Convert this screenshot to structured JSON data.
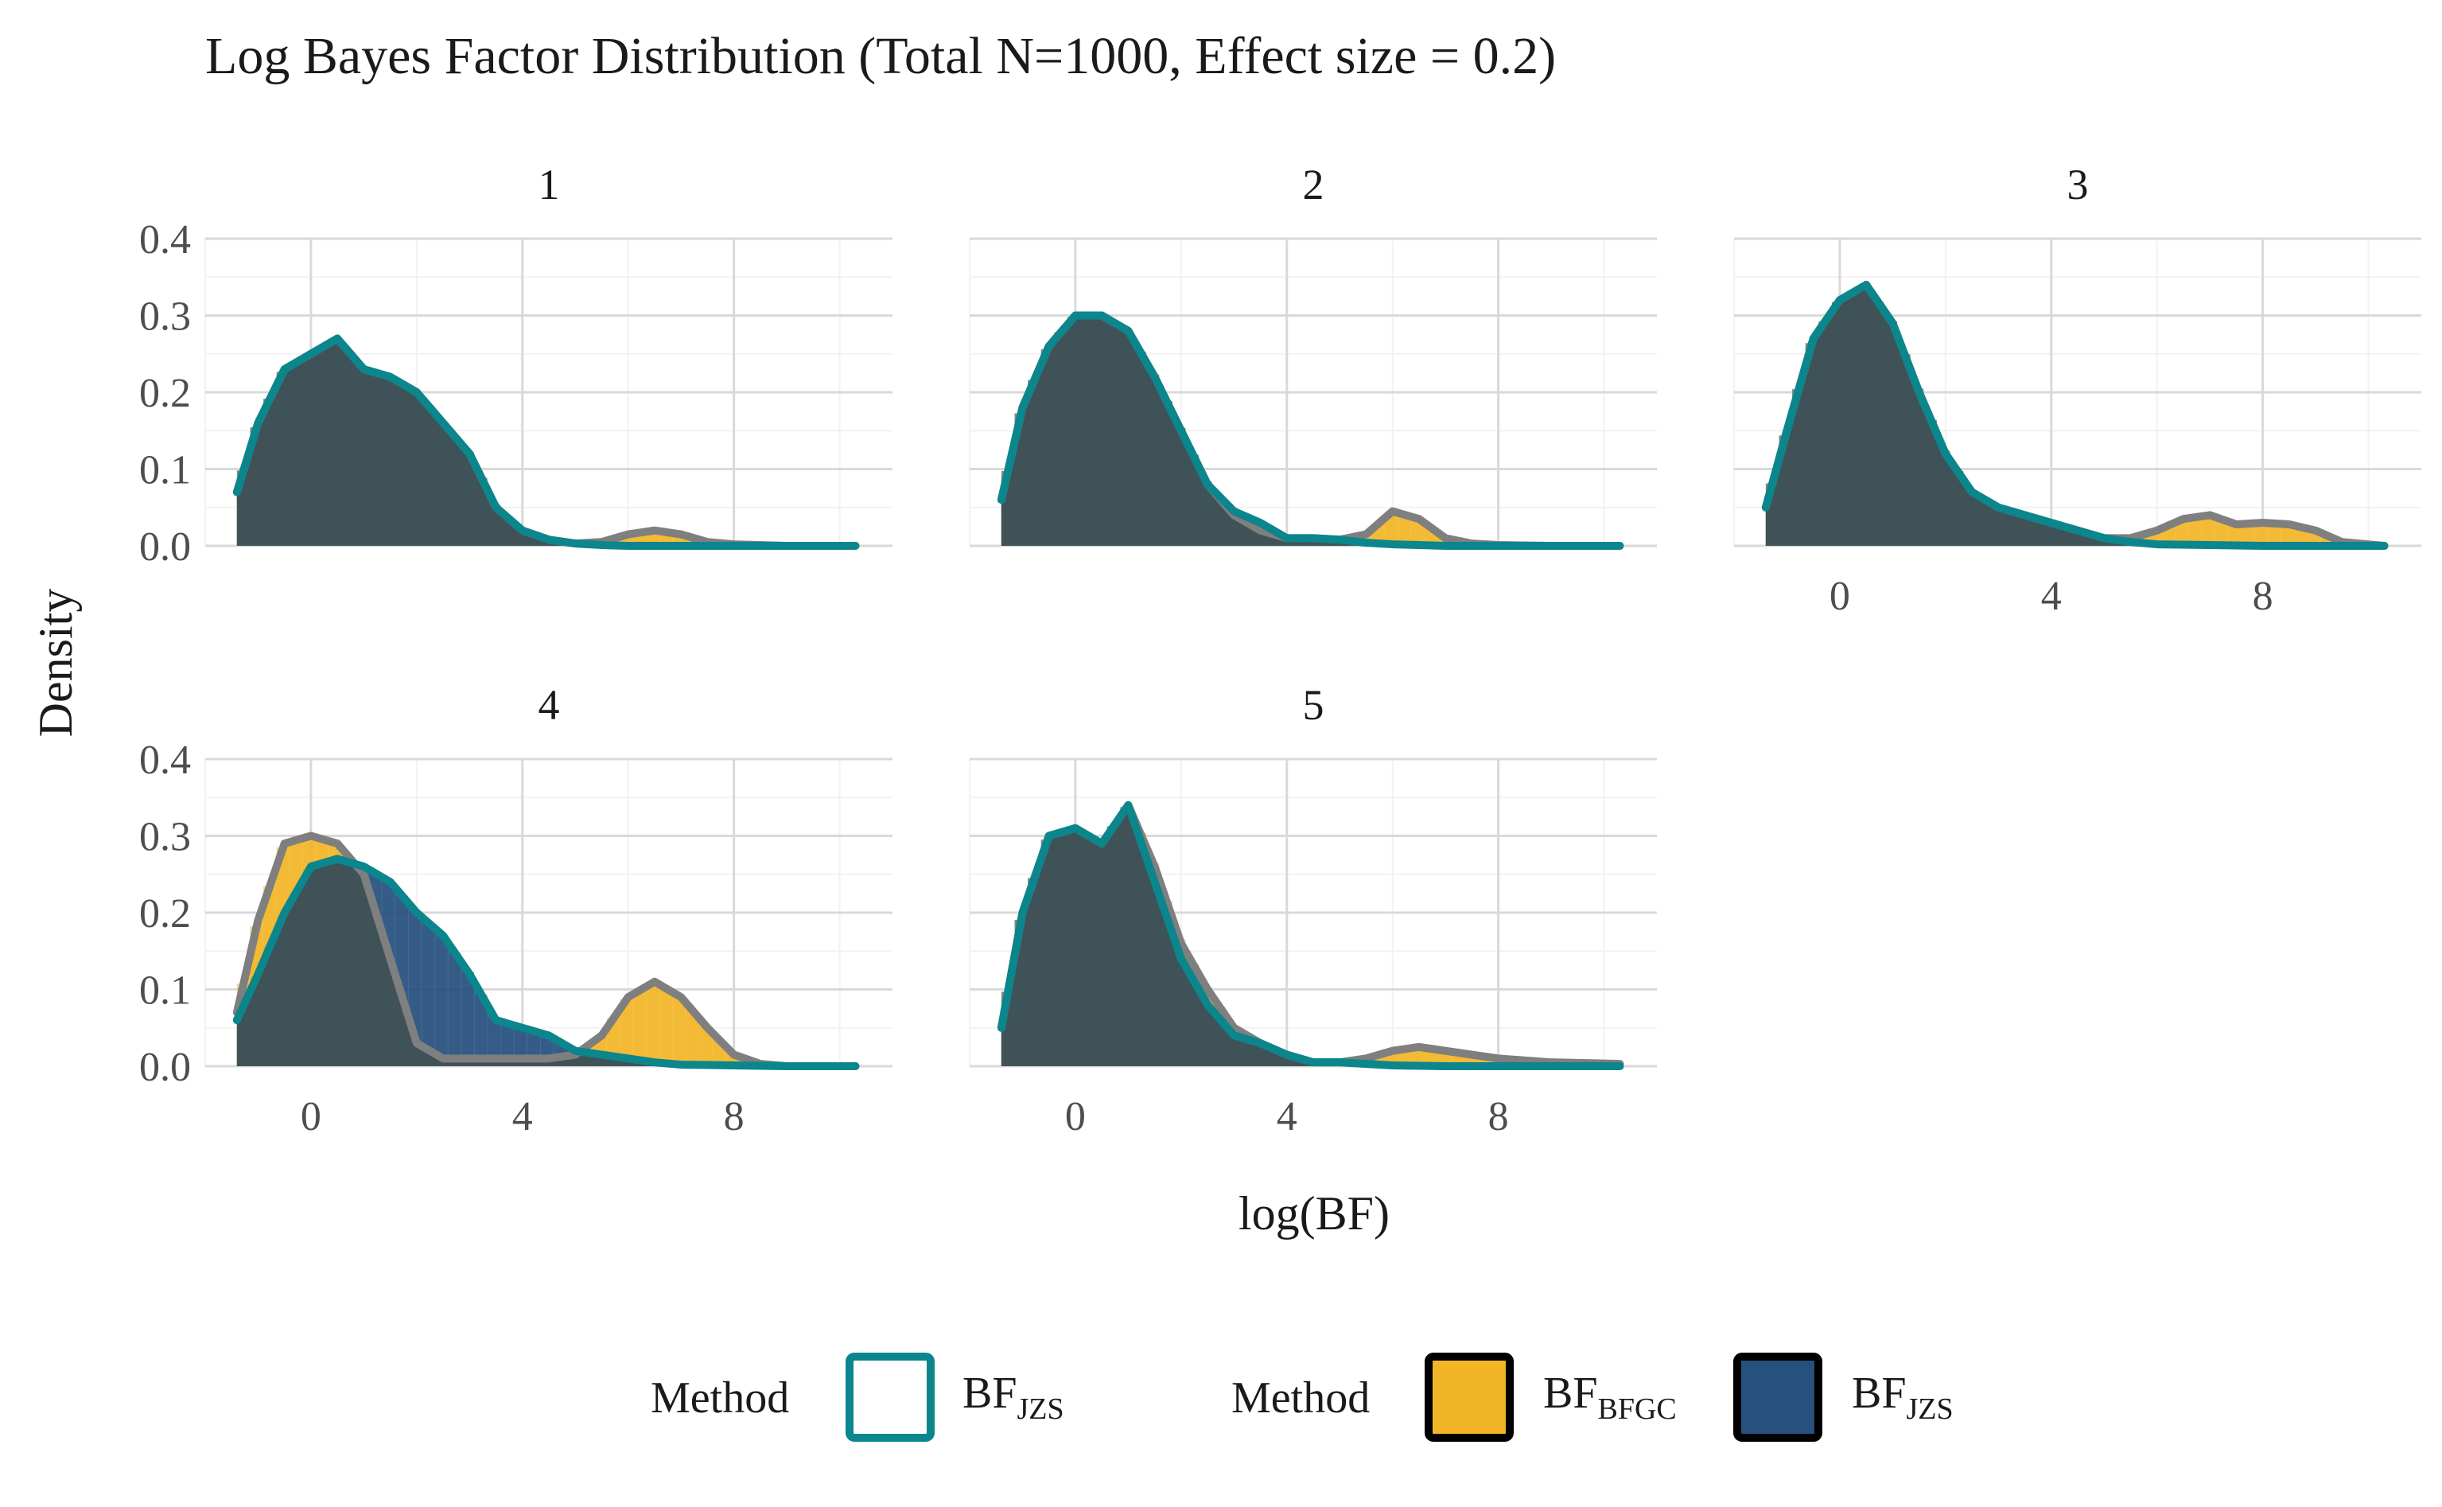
{
  "title": "Log Bayes Factor Distribution (Total N=1000, Effect size = 0.2)",
  "colors": {
    "bfgc": "#F2B527",
    "jzs": "#26507E",
    "jzs_line": "#0A868C",
    "bfgc_line": "#7F7F7F",
    "overlap": "#3F5154",
    "grid_major": "#D9D9D9",
    "grid_minor": "#F2F2F2",
    "text_dark": "#1A1A1A",
    "text_axis": "#4D4D4D"
  },
  "legend": {
    "group1": {
      "title": "Method",
      "items": [
        {
          "base": "BF",
          "sub": "JZS",
          "style": "line",
          "color_key": "jzs_line"
        }
      ]
    },
    "group2": {
      "title": "Method",
      "items": [
        {
          "base": "BF",
          "sub": "BFGC",
          "style": "fill",
          "color_key": "bfgc"
        },
        {
          "base": "BF",
          "sub": "JZS",
          "style": "fill",
          "color_key": "jzs"
        }
      ]
    }
  },
  "chart_data": {
    "type": "area",
    "title": "Log Bayes Factor Distribution (Total N=1000, Effect size = 0.2)",
    "xlabel": "log(BF)",
    "ylabel": "Density",
    "xlim": [
      -2,
      11
    ],
    "ylim": [
      0,
      0.4
    ],
    "x_ticks": [
      0,
      4,
      8
    ],
    "x_tick_labels": [
      "0",
      "4",
      "8"
    ],
    "y_ticks": [
      0,
      0.1,
      0.2,
      0.3,
      0.4
    ],
    "y_tick_labels": [
      "0.0",
      "0.1",
      "0.2",
      "0.3",
      "0.4"
    ],
    "grid": true,
    "legend_position": "bottom",
    "x_axis_shown_on_panels": [
      "3",
      "4",
      "5"
    ],
    "y_axis_shown_on_panels": [
      "1",
      "4"
    ],
    "histogram_bin_width": 0.25,
    "panels": [
      {
        "label": "1",
        "series": [
          {
            "name": "BFBFGC",
            "kind": "density",
            "x": [
              -1.4,
              -1,
              -0.5,
              0,
              0.5,
              1,
              1.5,
              2,
              2.5,
              3,
              3.5,
              4,
              4.5,
              5,
              5.5,
              6,
              6.5,
              7,
              7.5,
              8,
              9,
              10.3
            ],
            "y": [
              0.07,
              0.16,
              0.23,
              0.25,
              0.27,
              0.23,
              0.22,
              0.2,
              0.16,
              0.12,
              0.05,
              0.02,
              0.008,
              0.003,
              0.005,
              0.015,
              0.02,
              0.015,
              0.005,
              0.002,
              0,
              0
            ]
          },
          {
            "name": "BFJZS",
            "kind": "density",
            "x": [
              -1.4,
              -1,
              -0.5,
              0,
              0.5,
              1,
              1.5,
              2,
              2.5,
              3,
              3.5,
              4,
              4.5,
              5,
              5.5,
              6,
              7,
              8,
              9,
              10.3
            ],
            "y": [
              0.07,
              0.16,
              0.23,
              0.25,
              0.27,
              0.23,
              0.22,
              0.2,
              0.16,
              0.12,
              0.05,
              0.02,
              0.008,
              0.003,
              0.001,
              0,
              0,
              0,
              0,
              0
            ]
          }
        ]
      },
      {
        "label": "2",
        "series": [
          {
            "name": "BFBFGC",
            "kind": "density",
            "x": [
              -1.4,
              -1,
              -0.5,
              0,
              0.5,
              1,
              1.5,
              2,
              2.5,
              3,
              3.5,
              4,
              4.5,
              5,
              5.5,
              6,
              6.5,
              7,
              7.5,
              8,
              9,
              10.3
            ],
            "y": [
              0.06,
              0.18,
              0.26,
              0.3,
              0.3,
              0.28,
              0.22,
              0.15,
              0.08,
              0.04,
              0.02,
              0.01,
              0.01,
              0.008,
              0.015,
              0.045,
              0.035,
              0.01,
              0.003,
              0.001,
              0,
              0
            ]
          },
          {
            "name": "BFJZS",
            "kind": "density",
            "x": [
              -1.4,
              -1,
              -0.5,
              0,
              0.5,
              1,
              1.5,
              2,
              2.5,
              3,
              3.5,
              4,
              4.5,
              5,
              5.5,
              6,
              6.5,
              7,
              8,
              9,
              10.3
            ],
            "y": [
              0.06,
              0.18,
              0.26,
              0.3,
              0.3,
              0.28,
              0.22,
              0.15,
              0.08,
              0.045,
              0.03,
              0.01,
              0.01,
              0.008,
              0.004,
              0.002,
              0.001,
              0,
              0,
              0,
              0
            ]
          }
        ]
      },
      {
        "label": "3",
        "series": [
          {
            "name": "BFBFGC",
            "kind": "density",
            "x": [
              -1.4,
              -1,
              -0.5,
              0,
              0.5,
              1,
              1.5,
              2,
              2.5,
              3,
              3.5,
              4,
              4.5,
              5,
              5.5,
              6,
              6.5,
              7,
              7.5,
              8,
              8.5,
              9,
              9.5,
              10.3
            ],
            "y": [
              0.05,
              0.15,
              0.27,
              0.32,
              0.34,
              0.29,
              0.2,
              0.12,
              0.07,
              0.05,
              0.04,
              0.03,
              0.02,
              0.01,
              0.01,
              0.02,
              0.035,
              0.04,
              0.028,
              0.03,
              0.028,
              0.02,
              0.005,
              0
            ]
          },
          {
            "name": "BFJZS",
            "kind": "density",
            "x": [
              -1.4,
              -1,
              -0.5,
              0,
              0.5,
              1,
              1.5,
              2,
              2.5,
              3,
              3.5,
              4,
              4.5,
              5,
              5.5,
              6,
              7,
              8,
              9,
              10.3
            ],
            "y": [
              0.05,
              0.15,
              0.27,
              0.32,
              0.34,
              0.29,
              0.2,
              0.12,
              0.07,
              0.05,
              0.04,
              0.03,
              0.02,
              0.01,
              0.005,
              0.002,
              0.001,
              0,
              0,
              0
            ]
          }
        ]
      },
      {
        "label": "4",
        "series": [
          {
            "name": "BFBFGC",
            "kind": "density",
            "x": [
              -1.4,
              -1,
              -0.5,
              0,
              0.5,
              1,
              1.5,
              2,
              2.5,
              3,
              3.5,
              4,
              4.5,
              5,
              5.5,
              6,
              6.5,
              7,
              7.5,
              8,
              8.5,
              9,
              10.3
            ],
            "y": [
              0.07,
              0.19,
              0.29,
              0.3,
              0.29,
              0.25,
              0.14,
              0.03,
              0.01,
              0.01,
              0.01,
              0.01,
              0.01,
              0.015,
              0.04,
              0.09,
              0.11,
              0.09,
              0.05,
              0.015,
              0.003,
              0,
              0
            ]
          },
          {
            "name": "BFJZS",
            "kind": "density",
            "x": [
              -1.4,
              -1,
              -0.5,
              0,
              0.5,
              1,
              1.5,
              2,
              2.5,
              3,
              3.5,
              4,
              4.5,
              5,
              5.5,
              6,
              6.5,
              7,
              8,
              9,
              10.3
            ],
            "y": [
              0.06,
              0.12,
              0.2,
              0.26,
              0.27,
              0.26,
              0.24,
              0.2,
              0.17,
              0.12,
              0.06,
              0.05,
              0.04,
              0.02,
              0.015,
              0.01,
              0.005,
              0.002,
              0.001,
              0,
              0
            ]
          }
        ]
      },
      {
        "label": "5",
        "series": [
          {
            "name": "BFBFGC",
            "kind": "density",
            "x": [
              -1.4,
              -1,
              -0.5,
              0,
              0.5,
              1,
              1.5,
              2,
              2.5,
              3,
              3.5,
              4,
              4.5,
              5,
              5.5,
              6,
              6.5,
              7,
              7.5,
              8,
              9,
              10.3
            ],
            "y": [
              0.05,
              0.2,
              0.3,
              0.31,
              0.29,
              0.34,
              0.26,
              0.16,
              0.1,
              0.05,
              0.03,
              0.015,
              0.005,
              0.005,
              0.01,
              0.02,
              0.025,
              0.02,
              0.015,
              0.01,
              0.005,
              0.003
            ]
          },
          {
            "name": "BFJZS",
            "kind": "density",
            "x": [
              -1.4,
              -1,
              -0.5,
              0,
              0.5,
              1,
              1.5,
              2,
              2.5,
              3,
              3.5,
              4,
              4.5,
              5,
              5.5,
              6,
              7,
              8,
              9,
              10.3
            ],
            "y": [
              0.05,
              0.2,
              0.3,
              0.31,
              0.29,
              0.34,
              0.24,
              0.14,
              0.08,
              0.04,
              0.03,
              0.015,
              0.005,
              0.005,
              0.003,
              0.001,
              0,
              0,
              0,
              0
            ]
          }
        ]
      }
    ]
  }
}
